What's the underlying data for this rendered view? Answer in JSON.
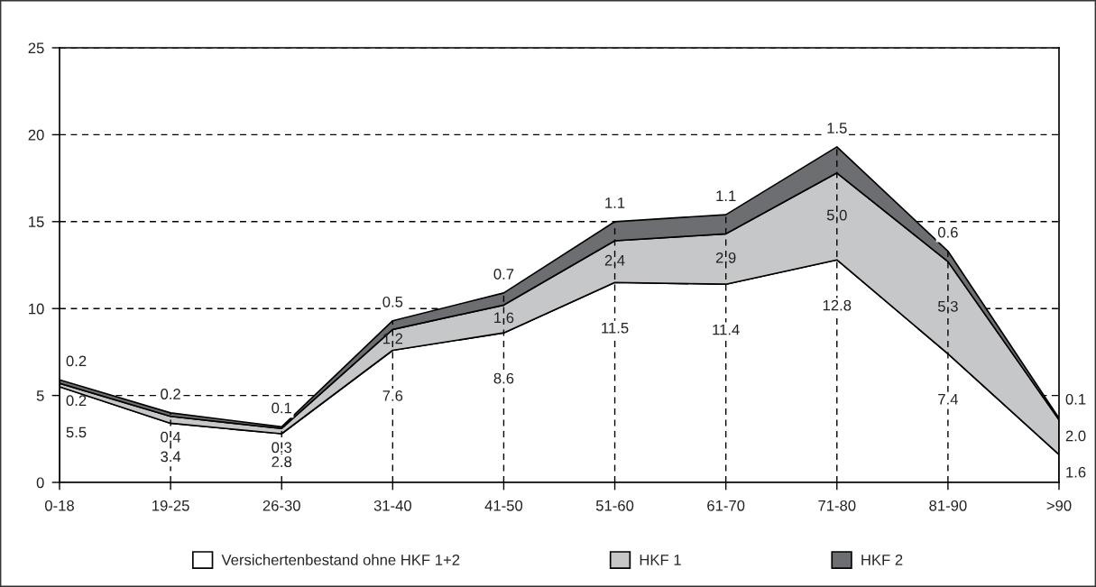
{
  "chart_data": {
    "type": "area",
    "stacked": true,
    "categories": [
      "0-18",
      "19-25",
      "26-30",
      "31-40",
      "41-50",
      "51-60",
      "61-70",
      "71-80",
      "81-90",
      ">90"
    ],
    "series": [
      {
        "name": "Versichertenbestand ohne HKF 1+2",
        "color": "#ffffff",
        "values": [
          5.5,
          3.4,
          2.8,
          7.6,
          8.6,
          11.5,
          11.4,
          12.8,
          7.4,
          1.6
        ],
        "value_labels": [
          "5.5",
          "3.4",
          "2.8",
          "7.6",
          "8.6",
          "11.5",
          "11.4",
          "12.8",
          "7.4",
          "1.6"
        ]
      },
      {
        "name": "HKF 1",
        "color": "#c6c7c9",
        "values": [
          0.2,
          0.4,
          0.3,
          1.2,
          1.6,
          2.4,
          2.9,
          5.0,
          5.3,
          2.0
        ],
        "value_labels": [
          "0.2",
          "0.4",
          "0.3",
          "1.2",
          "1.6",
          "2.4",
          "2.9",
          "5.0",
          "5.3",
          "2.0"
        ]
      },
      {
        "name": "HKF 2",
        "color": "#6d6e71",
        "values": [
          0.2,
          0.2,
          0.1,
          0.5,
          0.7,
          1.1,
          1.1,
          1.5,
          0.6,
          0.1
        ],
        "value_labels": [
          "0.2",
          "0.2",
          "0.1",
          "0.5",
          "0.7",
          "1.1",
          "1.1",
          "1.5",
          "0.6",
          "0.1"
        ]
      }
    ],
    "ylim": [
      0,
      25
    ],
    "yticks": [
      0,
      5,
      10,
      15,
      20,
      25
    ],
    "grid": true,
    "legend": "bottom"
  }
}
